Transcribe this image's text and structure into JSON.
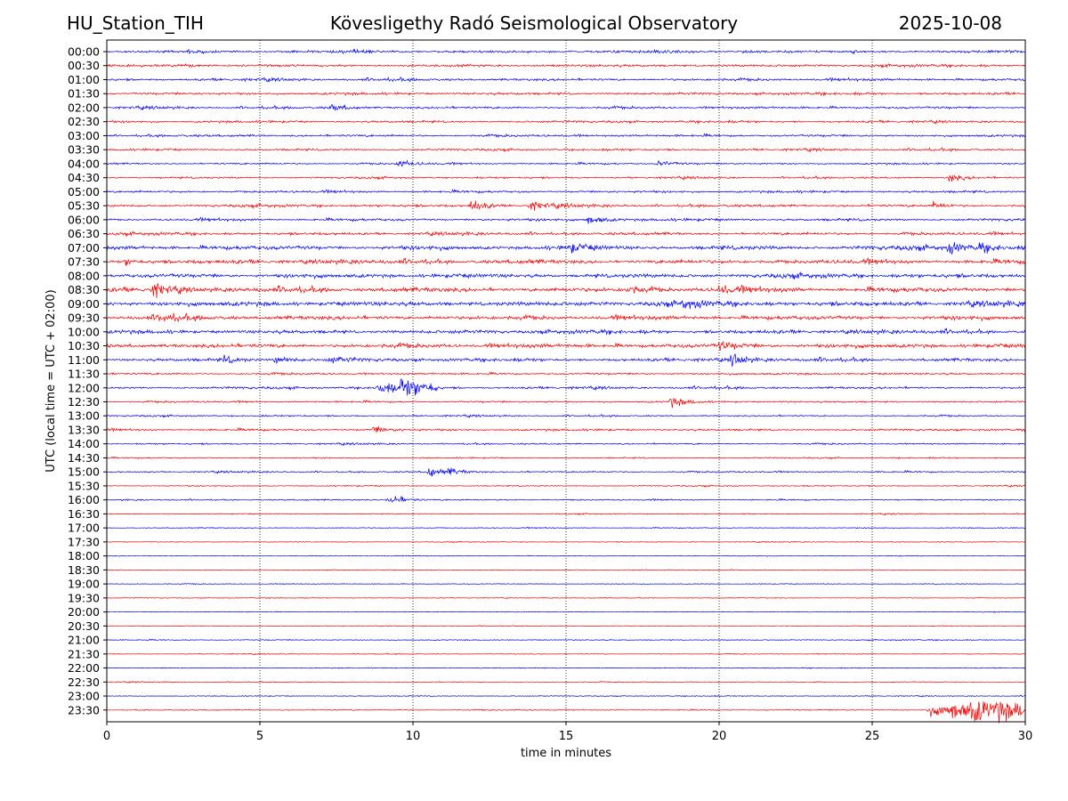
{
  "header": {
    "station": "HU_Station_TIH",
    "observatory": "Kövesligethy Radó Seismological Observatory",
    "date": "2025-10-08"
  },
  "chart_data": {
    "type": "line",
    "title": "Kövesligethy Radó Seismological Observatory",
    "xlabel": "time in minutes",
    "ylabel": "UTC (local time = UTC + 02:00)",
    "xlim": [
      0,
      30
    ],
    "x_ticks": [
      0,
      5,
      10,
      15,
      20,
      25,
      30
    ],
    "grid": "vertical dotted lines at x ticks",
    "row_labels": [
      "00:00",
      "00:30",
      "01:00",
      "01:30",
      "02:00",
      "02:30",
      "03:00",
      "03:30",
      "04:00",
      "04:30",
      "05:00",
      "05:30",
      "06:00",
      "06:30",
      "07:00",
      "07:30",
      "08:00",
      "08:30",
      "09:00",
      "09:30",
      "10:00",
      "10:30",
      "11:00",
      "11:30",
      "12:00",
      "12:30",
      "13:00",
      "13:30",
      "14:00",
      "14:30",
      "15:00",
      "15:30",
      "16:00",
      "16:30",
      "17:00",
      "17:30",
      "18:00",
      "18:30",
      "19:00",
      "19:30",
      "20:00",
      "20:30",
      "21:00",
      "21:30",
      "22:00",
      "22:30",
      "23:00",
      "23:30"
    ],
    "colors": [
      "#0000ee",
      "#ee0000"
    ],
    "amplitude_level": [
      0.5,
      0.5,
      0.5,
      0.5,
      0.45,
      0.45,
      0.45,
      0.4,
      0.35,
      0.35,
      0.45,
      0.5,
      0.5,
      0.55,
      0.8,
      0.8,
      0.8,
      0.9,
      0.9,
      0.8,
      0.75,
      0.8,
      0.6,
      0.4,
      0.45,
      0.35,
      0.3,
      0.4,
      0.3,
      0.25,
      0.3,
      0.22,
      0.25,
      0.2,
      0.18,
      0.15,
      0.14,
      0.12,
      0.14,
      0.14,
      0.12,
      0.12,
      0.2,
      0.15,
      0.18,
      0.16,
      0.18,
      0.2
    ],
    "events": [
      {
        "row": 4,
        "x": 7.3,
        "amp": 1.8
      },
      {
        "row": 8,
        "x": 9.5,
        "amp": 2.0
      },
      {
        "row": 8,
        "x": 18.0,
        "amp": 1.8
      },
      {
        "row": 9,
        "x": 27.5,
        "amp": 2.5
      },
      {
        "row": 11,
        "x": 11.9,
        "amp": 3.5
      },
      {
        "row": 11,
        "x": 13.8,
        "amp": 2.5
      },
      {
        "row": 11,
        "x": 27.0,
        "amp": 1.8
      },
      {
        "row": 12,
        "x": 15.7,
        "amp": 3.2
      },
      {
        "row": 14,
        "x": 15.1,
        "amp": 2.5
      },
      {
        "row": 14,
        "x": 27.5,
        "amp": 3.0
      },
      {
        "row": 14,
        "x": 28.5,
        "amp": 3.0
      },
      {
        "row": 15,
        "x": 0.6,
        "amp": 2.0
      },
      {
        "row": 17,
        "x": 1.5,
        "amp": 3.5
      },
      {
        "row": 17,
        "x": 17.0,
        "amp": 2.0
      },
      {
        "row": 17,
        "x": 20.0,
        "amp": 2.0
      },
      {
        "row": 18,
        "x": 18.8,
        "amp": 2.2
      },
      {
        "row": 19,
        "x": 1.7,
        "amp": 2.0
      },
      {
        "row": 21,
        "x": 20.0,
        "amp": 2.2
      },
      {
        "row": 22,
        "x": 3.8,
        "amp": 2.0
      },
      {
        "row": 22,
        "x": 5.5,
        "amp": 2.0
      },
      {
        "row": 22,
        "x": 7.3,
        "amp": 2.2
      },
      {
        "row": 22,
        "x": 20.4,
        "amp": 3.2
      },
      {
        "row": 24,
        "x": 9.6,
        "amp": 4.5
      },
      {
        "row": 25,
        "x": 18.4,
        "amp": 3.0
      },
      {
        "row": 27,
        "x": 8.7,
        "amp": 2.0
      },
      {
        "row": 30,
        "x": 10.5,
        "amp": 3.0
      },
      {
        "row": 30,
        "x": 11.1,
        "amp": 1.8
      },
      {
        "row": 32,
        "x": 9.2,
        "amp": 3.5
      },
      {
        "row": 47,
        "x": 27.6,
        "amp": 5.0
      },
      {
        "row": 47,
        "x": 29.0,
        "amp": 5.5
      }
    ]
  }
}
